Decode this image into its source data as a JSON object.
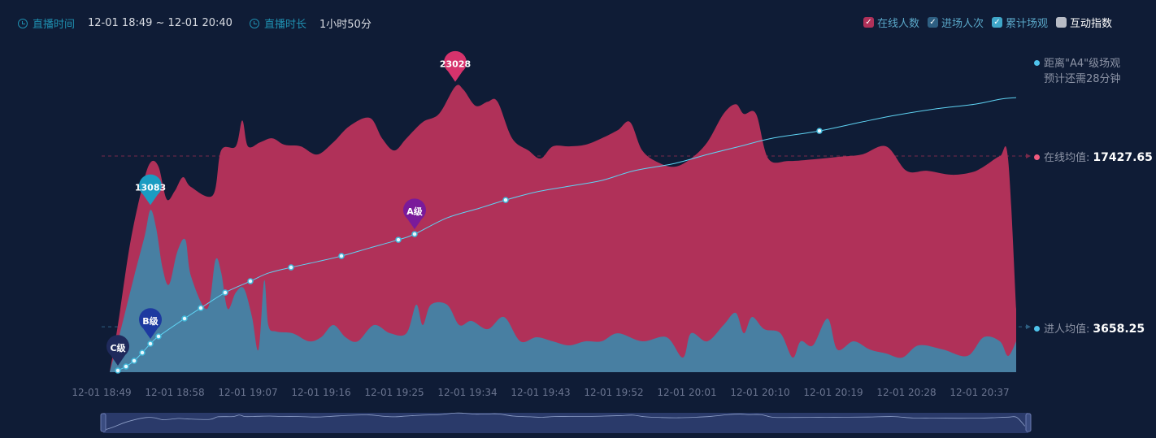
{
  "header": {
    "time_label": "直播时间",
    "time_range": "12-01 18:49 ~ 12-01 20:40",
    "duration_label": "直播时长",
    "duration": "1小时50分"
  },
  "legend": [
    {
      "label": "在线人数",
      "checked": true,
      "color": "#b03159"
    },
    {
      "label": "进场人次",
      "checked": true,
      "color": "#2e5f82"
    },
    {
      "label": "累计场观",
      "checked": true,
      "color": "#3fa6c8"
    },
    {
      "label": "互动指数",
      "checked": false,
      "color": "#b8bcc6"
    }
  ],
  "side": {
    "forecast_line1": "距离\"A4\"级场观",
    "forecast_line2": "预计还需28分钟",
    "online_avg_label": "在线均值:",
    "online_avg": "17427.65",
    "entry_avg_label": "进人均值:",
    "entry_avg": "3658.25"
  },
  "colors": {
    "online": "#b03159",
    "entry": "#3f86a8",
    "cumulative": "#5fd3f3",
    "bg": "#0f1c36"
  },
  "chart_data": {
    "type": "area",
    "x_unit": "minutes since 12-01 18:49",
    "x_ticks": [
      {
        "m": 0,
        "label": "12-01 18:49"
      },
      {
        "m": 9,
        "label": "12-01 18:58"
      },
      {
        "m": 18,
        "label": "12-01 19:07"
      },
      {
        "m": 27,
        "label": "12-01 19:16"
      },
      {
        "m": 36,
        "label": "12-01 19:25"
      },
      {
        "m": 45,
        "label": "12-01 19:34"
      },
      {
        "m": 54,
        "label": "12-01 19:43"
      },
      {
        "m": 63,
        "label": "12-01 19:52"
      },
      {
        "m": 72,
        "label": "12-01 20:01"
      },
      {
        "m": 81,
        "label": "12-01 20:10"
      },
      {
        "m": 90,
        "label": "12-01 20:19"
      },
      {
        "m": 99,
        "label": "12-01 20:28"
      },
      {
        "m": 108,
        "label": "12-01 20:37"
      }
    ],
    "ylim": [
      0,
      26000
    ],
    "averages": {
      "online": 17427.65,
      "entry": 3658.25
    },
    "series": [
      {
        "name": "在线人数",
        "points": [
          [
            0,
            0
          ],
          [
            1,
            3800
          ],
          [
            2.5,
            10350
          ],
          [
            4,
            14930
          ],
          [
            5,
            16900
          ],
          [
            6,
            16570
          ],
          [
            7,
            13950
          ],
          [
            8,
            14610
          ],
          [
            9,
            15720
          ],
          [
            10,
            14930
          ],
          [
            12.7,
            14280
          ],
          [
            13.7,
            17880
          ],
          [
            15.5,
            18210
          ],
          [
            16.3,
            20300
          ],
          [
            17,
            18210
          ],
          [
            18.5,
            18540
          ],
          [
            20,
            18860
          ],
          [
            21.5,
            18340
          ],
          [
            23.5,
            18210
          ],
          [
            25.5,
            17550
          ],
          [
            27.5,
            18540
          ],
          [
            29.5,
            19850
          ],
          [
            32,
            20500
          ],
          [
            33.5,
            18860
          ],
          [
            35,
            17880
          ],
          [
            36.5,
            18860
          ],
          [
            38.5,
            20170
          ],
          [
            40.5,
            20830
          ],
          [
            42.5,
            23028
          ],
          [
            43.5,
            22790
          ],
          [
            45,
            21480
          ],
          [
            46.5,
            21810
          ],
          [
            47.7,
            21810
          ],
          [
            49.5,
            18860
          ],
          [
            51.5,
            17880
          ],
          [
            53,
            17230
          ],
          [
            54.5,
            18210
          ],
          [
            56.5,
            18210
          ],
          [
            58.5,
            18340
          ],
          [
            60.5,
            18860
          ],
          [
            62.5,
            19520
          ],
          [
            64,
            20170
          ],
          [
            65.5,
            17880
          ],
          [
            67.5,
            16900
          ],
          [
            69.5,
            16570
          ],
          [
            71.5,
            17230
          ],
          [
            73.5,
            18540
          ],
          [
            75.5,
            20830
          ],
          [
            77,
            21610
          ],
          [
            78,
            20830
          ],
          [
            79.5,
            20830
          ],
          [
            81,
            17230
          ],
          [
            83.5,
            17030
          ],
          [
            86.5,
            17160
          ],
          [
            89.5,
            17360
          ],
          [
            92.5,
            17550
          ],
          [
            95.5,
            18210
          ],
          [
            98,
            16240
          ],
          [
            100.5,
            16240
          ],
          [
            103.5,
            15920
          ],
          [
            106,
            16110
          ],
          [
            107.5,
            16570
          ],
          [
            109.5,
            17420
          ],
          [
            110.5,
            17230
          ],
          [
            111.5,
            5110
          ]
        ]
      },
      {
        "name": "进场人次",
        "points": [
          [
            0,
            0
          ],
          [
            1,
            2490
          ],
          [
            3,
            7730
          ],
          [
            4.3,
            11000
          ],
          [
            5,
            13083
          ],
          [
            5.7,
            11660
          ],
          [
            6.5,
            8380
          ],
          [
            7.3,
            7070
          ],
          [
            8.3,
            9690
          ],
          [
            9.3,
            10680
          ],
          [
            10,
            7730
          ],
          [
            12,
            5110
          ],
          [
            13,
            9040
          ],
          [
            13.7,
            8060
          ],
          [
            14.5,
            5110
          ],
          [
            15.5,
            6420
          ],
          [
            16.5,
            6750
          ],
          [
            17.5,
            4450
          ],
          [
            18.3,
            1830
          ],
          [
            19,
            7400
          ],
          [
            19.5,
            3800
          ],
          [
            20.5,
            3280
          ],
          [
            22.5,
            3140
          ],
          [
            24.5,
            2490
          ],
          [
            26,
            2820
          ],
          [
            27.5,
            3800
          ],
          [
            29,
            2820
          ],
          [
            30.5,
            2490
          ],
          [
            32.5,
            3800
          ],
          [
            34.5,
            3140
          ],
          [
            36.5,
            3140
          ],
          [
            37.7,
            5440
          ],
          [
            38.5,
            3800
          ],
          [
            39.5,
            5440
          ],
          [
            41.5,
            5440
          ],
          [
            43,
            3800
          ],
          [
            44.5,
            4130
          ],
          [
            46.5,
            3470
          ],
          [
            48.5,
            4450
          ],
          [
            50.5,
            2490
          ],
          [
            52.5,
            2820
          ],
          [
            54.5,
            2490
          ],
          [
            56.5,
            2160
          ],
          [
            58.5,
            2490
          ],
          [
            60.5,
            2490
          ],
          [
            62.5,
            3140
          ],
          [
            65.5,
            2490
          ],
          [
            68.5,
            2820
          ],
          [
            70.5,
            1180
          ],
          [
            71.5,
            3140
          ],
          [
            73.5,
            2490
          ],
          [
            75.5,
            3800
          ],
          [
            77,
            4780
          ],
          [
            78,
            3140
          ],
          [
            79,
            4450
          ],
          [
            80.5,
            3470
          ],
          [
            82.5,
            3140
          ],
          [
            84,
            1180
          ],
          [
            85,
            2490
          ],
          [
            86.5,
            2160
          ],
          [
            88.3,
            4320
          ],
          [
            89.5,
            1830
          ],
          [
            91.5,
            2490
          ],
          [
            93.5,
            1830
          ],
          [
            95.5,
            1510
          ],
          [
            97.5,
            1180
          ],
          [
            99.5,
            2160
          ],
          [
            102.5,
            1830
          ],
          [
            105.5,
            1310
          ],
          [
            107.5,
            2820
          ],
          [
            109.5,
            2490
          ],
          [
            110.5,
            1310
          ],
          [
            111.5,
            2490
          ]
        ]
      },
      {
        "name": "累计场观",
        "points": [
          [
            1,
            131
          ],
          [
            2,
            459
          ],
          [
            3,
            917
          ],
          [
            4,
            1572
          ],
          [
            5,
            2293
          ],
          [
            6,
            2882
          ],
          [
            9.2,
            4323
          ],
          [
            11.2,
            5174
          ],
          [
            14.2,
            6419
          ],
          [
            17.3,
            7336
          ],
          [
            19.5,
            7991
          ],
          [
            22.3,
            8450
          ],
          [
            25.5,
            8908
          ],
          [
            28.5,
            9367
          ],
          [
            32,
            10022
          ],
          [
            35.5,
            10677
          ],
          [
            37.5,
            11135
          ],
          [
            41.5,
            12445
          ],
          [
            45.5,
            13231
          ],
          [
            48.7,
            13886
          ],
          [
            52.5,
            14541
          ],
          [
            56.5,
            15000
          ],
          [
            60.5,
            15459
          ],
          [
            64.5,
            16245
          ],
          [
            69.5,
            16834
          ],
          [
            73.5,
            17555
          ],
          [
            77.5,
            18210
          ],
          [
            81.5,
            18865
          ],
          [
            87.3,
            19455
          ],
          [
            92.5,
            20175
          ],
          [
            96.5,
            20699
          ],
          [
            101.5,
            21223
          ],
          [
            106.5,
            21616
          ],
          [
            109.5,
            22009
          ],
          [
            111.5,
            22140
          ]
        ],
        "dots": [
          0,
          1,
          2,
          3,
          4,
          5,
          6,
          7,
          8,
          9,
          11,
          13,
          15,
          16,
          19,
          28
        ]
      }
    ],
    "markers": [
      {
        "label": "23028",
        "series": 0,
        "point": 28,
        "color": "#d6336c"
      },
      {
        "label": "13083",
        "series": 1,
        "point": 4,
        "color": "#1a9cc2"
      },
      {
        "label": "C级",
        "series": 2,
        "point": 0,
        "color": "#1f2a5c"
      },
      {
        "label": "B级",
        "series": 2,
        "point": 4,
        "color": "#1d3aa0"
      },
      {
        "label": "A级",
        "series": 2,
        "point": 16,
        "color": "#7a1a9a"
      }
    ]
  }
}
